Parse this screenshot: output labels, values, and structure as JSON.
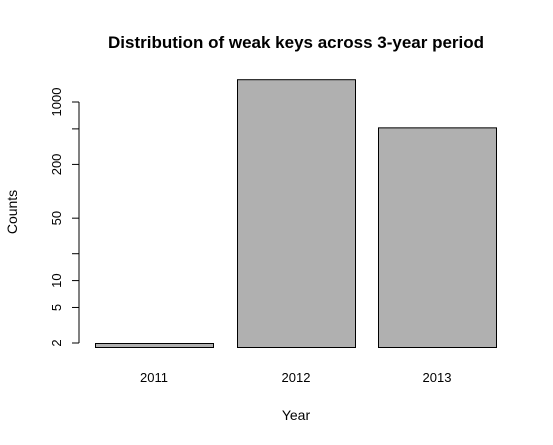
{
  "chart_data": {
    "type": "bar",
    "title": "Distribution of weak keys across 3-year period",
    "xlabel": "Year",
    "ylabel": "Counts",
    "categories": [
      "2011",
      "2012",
      "2013"
    ],
    "values": [
      2,
      1800,
      520
    ],
    "yscale": "log",
    "yticks": [
      2,
      5,
      10,
      50,
      200,
      1000
    ],
    "yticks_minor": [
      20,
      500
    ],
    "bar_color": "#b0b0b0",
    "grid": false,
    "legend": "none"
  }
}
